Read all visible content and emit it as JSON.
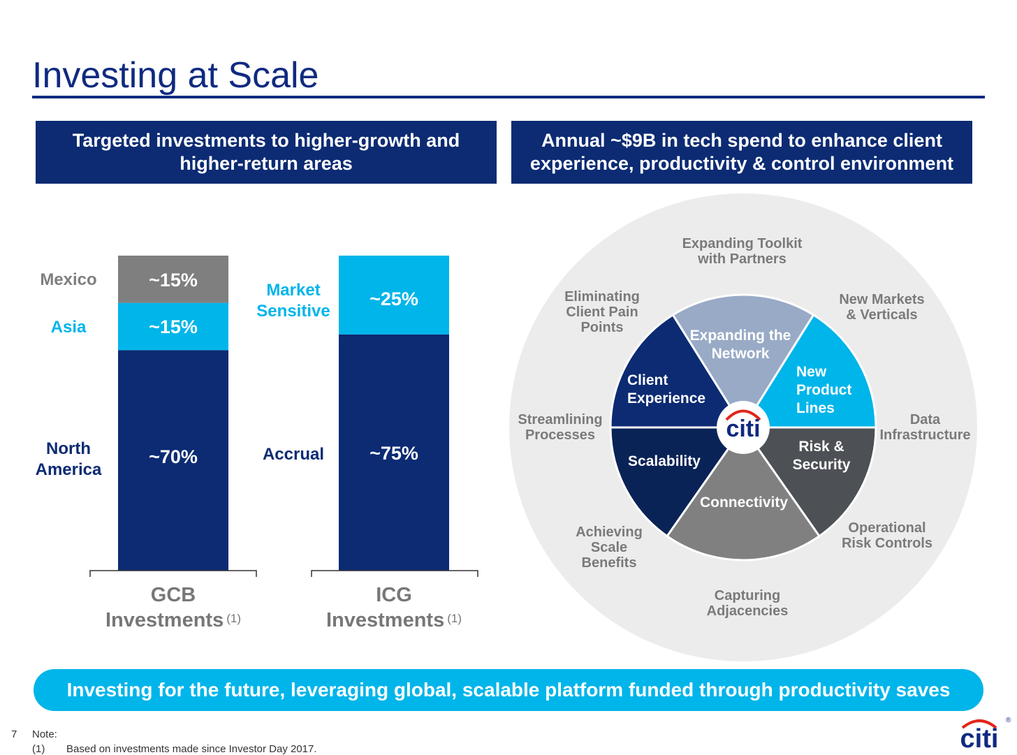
{
  "title": "Investing at Scale",
  "left_header": "Targeted investments to higher-growth and higher-return areas",
  "right_header": "Annual ~$9B in tech spend to enhance client experience, productivity & control environment",
  "colors": {
    "navy": "#0c2b73",
    "light_blue": "#00b5ea",
    "gray": "#7f7f7f",
    "wheel_bg": "#ececec",
    "citi_red": "#e1261c"
  },
  "chart_data": [
    {
      "type": "bar",
      "stacked": true,
      "categories": [
        "GCB Investments"
      ],
      "category_note": "(1)",
      "series": [
        {
          "name": "North America",
          "value": 70,
          "label": "~70%",
          "color": "#0c2b73"
        },
        {
          "name": "Asia",
          "value": 15,
          "label": "~15%",
          "color": "#00b5ea"
        },
        {
          "name": "Mexico",
          "value": 15,
          "label": "~15%",
          "color": "#7f7f7f"
        }
      ],
      "ylim": [
        0,
        100
      ]
    },
    {
      "type": "bar",
      "stacked": true,
      "categories": [
        "ICG Investments"
      ],
      "category_note": "(1)",
      "series": [
        {
          "name": "Accrual",
          "value": 75,
          "label": "~75%",
          "color": "#0c2b73"
        },
        {
          "name": "Market Sensitive",
          "value": 25,
          "label": "~25%",
          "color": "#00b5ea"
        }
      ],
      "ylim": [
        0,
        100
      ]
    }
  ],
  "bar_labels": {
    "gcb_line1": "GCB",
    "gcb_line2": "Investments",
    "icg_line1": "ICG",
    "icg_line2": "Investments",
    "note_marker": "(1)"
  },
  "wheel": {
    "center_logo": "citi",
    "sectors": [
      {
        "label": "Expanding the Network",
        "color": "#98aac6"
      },
      {
        "label": "New Product Lines",
        "color": "#00b5ea"
      },
      {
        "label": "Risk & Security",
        "color": "#4d5155"
      },
      {
        "label": "Connectivity",
        "color": "#808080"
      },
      {
        "label": "Scalability",
        "color": "#0a2356"
      },
      {
        "label": "Client Experience",
        "color": "#0c2b73"
      }
    ],
    "outer_labels": [
      "Expanding Toolkit with Partners",
      "New Markets & Verticals",
      "Data Infrastructure",
      "Operational Risk Controls",
      "Capturing Adjacencies",
      "Achieving Scale Benefits",
      "Streamlining Processes",
      "Eliminating Client Pain Points"
    ]
  },
  "banner": "Investing for the future, leveraging global, scalable platform funded through productivity saves",
  "footer": {
    "page_number": "7",
    "note_label": "Note:",
    "note_marker": "(1)",
    "note_text": "Based on investments made since Investor Day 2017."
  },
  "logo": {
    "text": "citi",
    "registered": "®"
  }
}
